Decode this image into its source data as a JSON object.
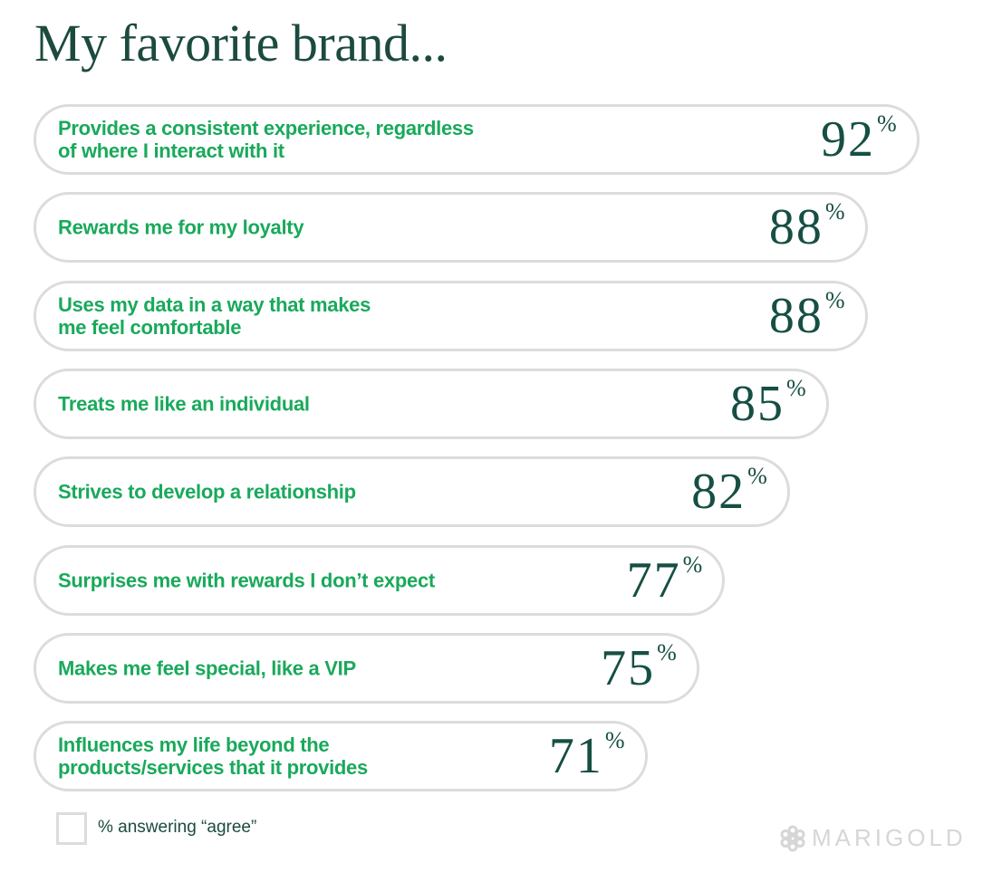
{
  "chart_data": {
    "type": "bar",
    "orientation": "horizontal",
    "title": "My favorite brand...",
    "categories": [
      "Provides a consistent experience, regardless\nof where I interact with it",
      "Rewards me for my loyalty",
      "Uses my data in a way that makes\nme feel comfortable",
      "Treats me like an individual",
      "Strives to develop a relationship",
      "Surprises me with rewards I don’t expect",
      "Makes me feel special, like a VIP",
      "Influences my life beyond the\nproducts/services that it provides"
    ],
    "values": [
      92,
      88,
      88,
      85,
      82,
      77,
      75,
      71
    ],
    "unit": "%",
    "legend": "% answering “agree”",
    "legend_placement": "bottom-left",
    "grid": false
  },
  "colors": {
    "label": "#19a95b",
    "value": "#164f44",
    "border": "#dcdcdc",
    "title": "#1c4a3f"
  },
  "brand": {
    "logo_text": "MARIGOLD",
    "icon": "flower-icon"
  }
}
